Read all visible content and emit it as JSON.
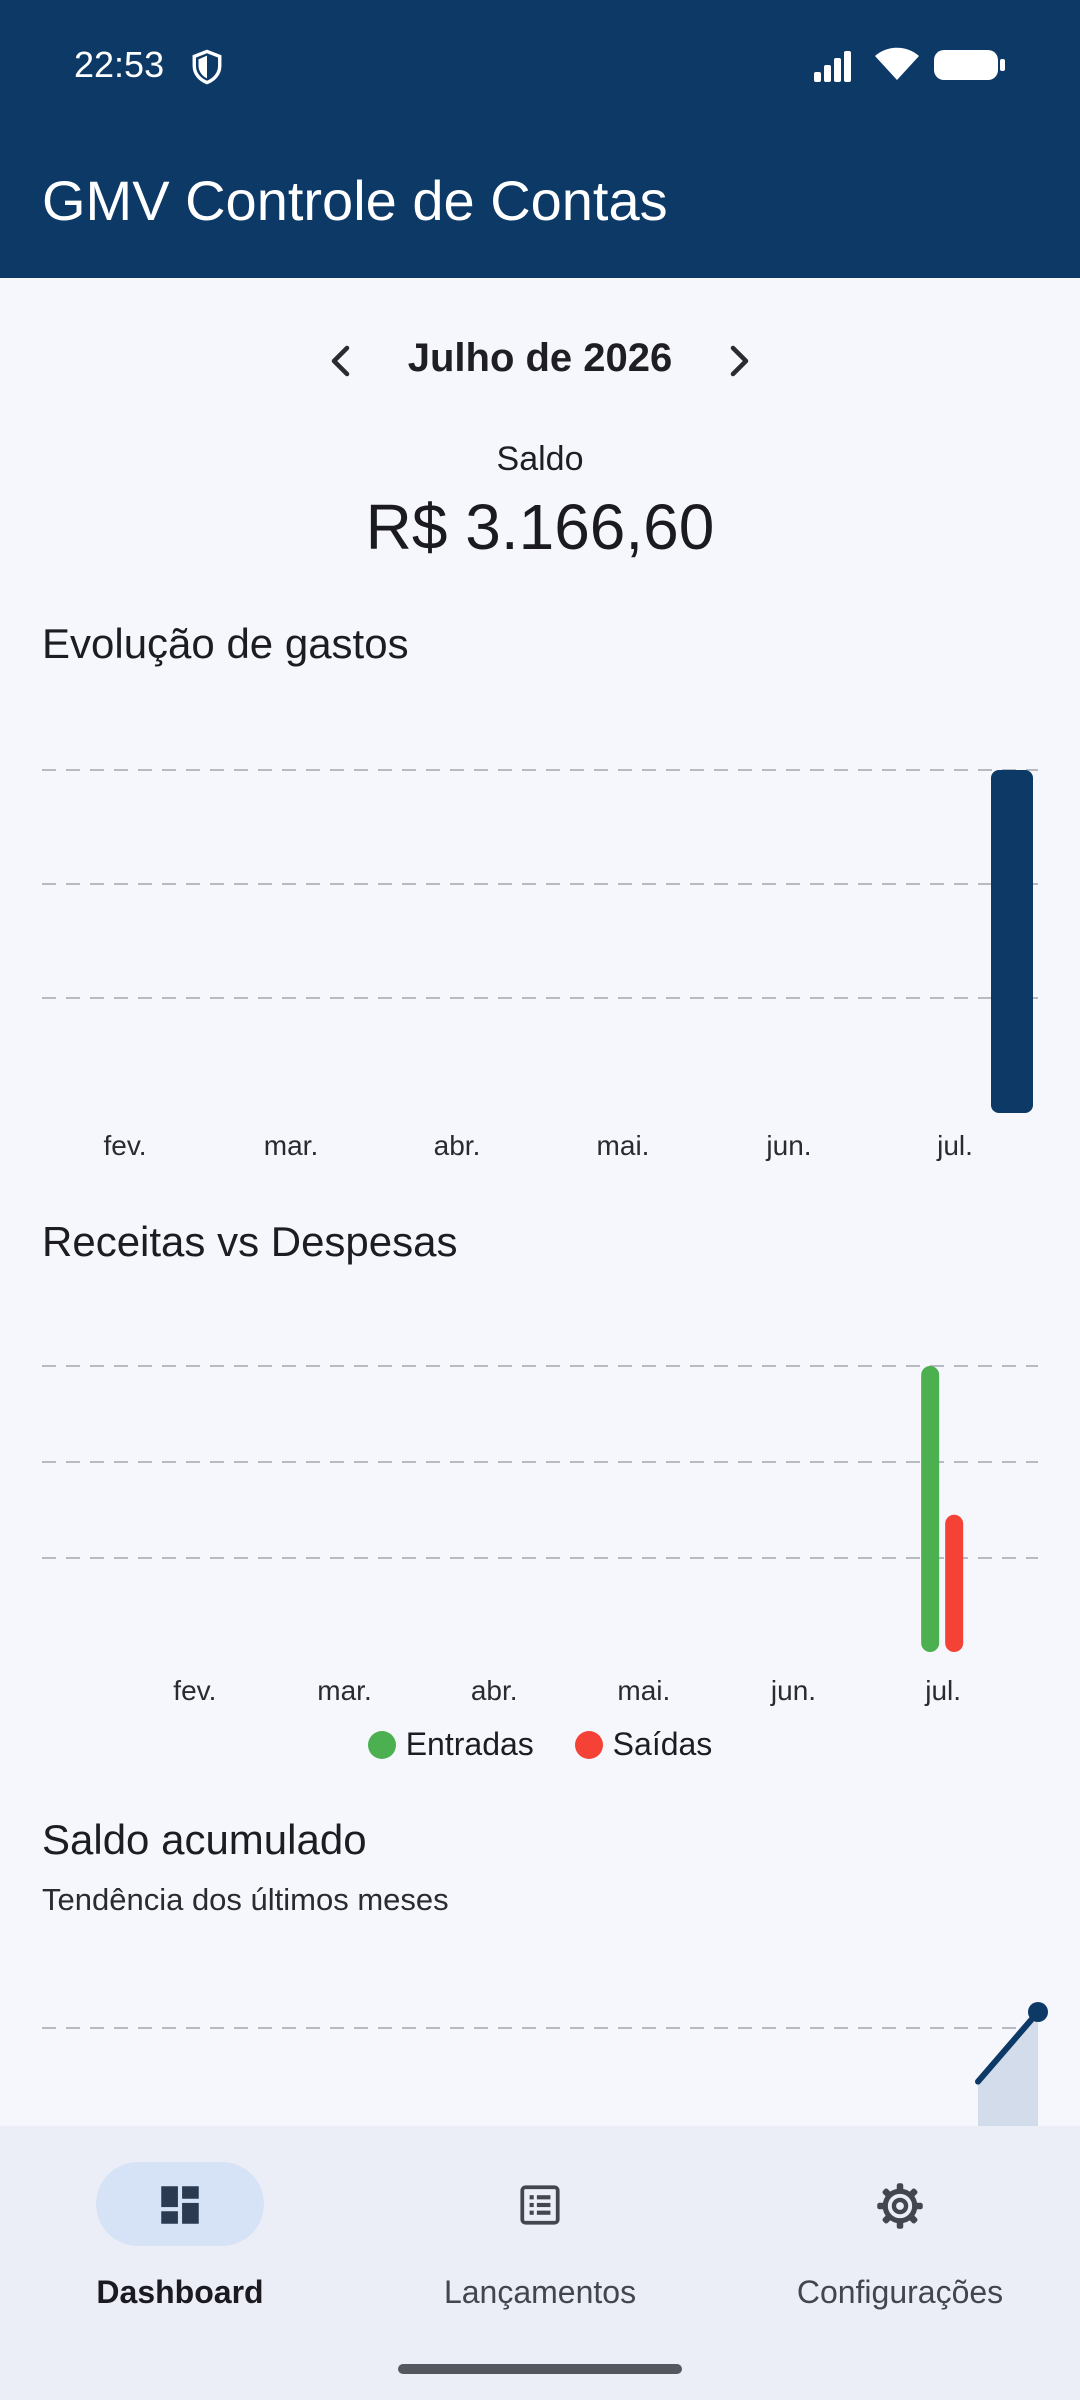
{
  "status_bar": {
    "time": "22:53",
    "icons": [
      "shield-icon",
      "signal-icon",
      "wifi-icon",
      "battery-icon"
    ]
  },
  "app_bar": {
    "title": "GMV Controle de Contas"
  },
  "month_nav": {
    "label": "Julho de 2026",
    "prev_icon": "chevron-left-icon",
    "next_icon": "chevron-right-icon"
  },
  "balance": {
    "label": "Saldo",
    "value": "R$ 3.166,60"
  },
  "sections": {
    "spending": {
      "title": "Evolução de gastos"
    },
    "income_vs_expense": {
      "title": "Receitas vs Despesas"
    },
    "cumulative": {
      "title": "Saldo acumulado",
      "subtitle": "Tendência dos últimos meses"
    }
  },
  "colors": {
    "primary": "#0d3966",
    "income": "#4caf50",
    "expense": "#f44336",
    "grid": "#b8bac2"
  },
  "chart_data": [
    {
      "type": "bar",
      "categories": [
        "fev.",
        "mar.",
        "abr.",
        "mai.",
        "jun.",
        "jul."
      ],
      "values": [
        0,
        0,
        0,
        0,
        0,
        1
      ],
      "ylim": [
        0,
        1
      ],
      "grid": true,
      "legend": "none"
    },
    {
      "type": "bar",
      "categories": [
        "fev.",
        "mar.",
        "abr.",
        "mai.",
        "jun.",
        "jul."
      ],
      "series": [
        {
          "name": "Entradas",
          "values": [
            0,
            0,
            0,
            0,
            0,
            1
          ]
        },
        {
          "name": "Saídas",
          "values": [
            0,
            0,
            0,
            0,
            0,
            0.48
          ]
        }
      ],
      "ylim": [
        0,
        1
      ],
      "grid": true,
      "legend": "bottom"
    },
    {
      "type": "area",
      "x": [
        0,
        1
      ],
      "values": [
        0.6,
        1
      ],
      "grid": true,
      "legend": "none"
    }
  ],
  "bottom_nav": {
    "items": [
      {
        "label": "Dashboard",
        "icon": "dashboard-icon",
        "active": true
      },
      {
        "label": "Lançamentos",
        "icon": "list-icon",
        "active": false
      },
      {
        "label": "Configurações",
        "icon": "gear-icon",
        "active": false
      }
    ]
  }
}
